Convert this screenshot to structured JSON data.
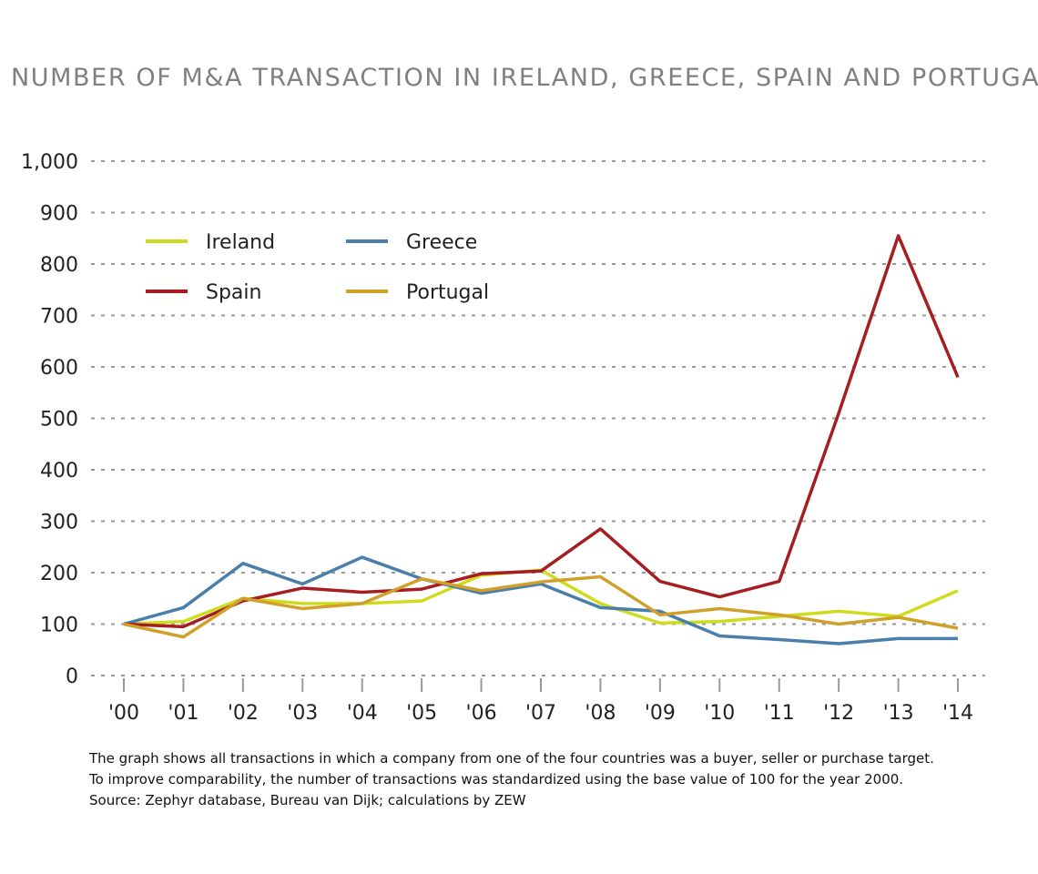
{
  "chart_data": {
    "type": "line",
    "title": "NUMBER OF M&A TRANSACTION IN IRELAND, GREECE, SPAIN AND PORTUGAL",
    "categories": [
      "'00",
      "'01",
      "'02",
      "'03",
      "'04",
      "'05",
      "'06",
      "'07",
      "'08",
      "'09",
      "'10",
      "'11",
      "'12",
      "'13",
      "'14"
    ],
    "ylim": [
      0,
      1000
    ],
    "yticks": [
      0,
      100,
      200,
      300,
      400,
      500,
      600,
      700,
      800,
      900,
      1000
    ],
    "ytick_labels": [
      "0",
      "100",
      "200",
      "300",
      "400",
      "500",
      "600",
      "700",
      "800",
      "900",
      "1,000"
    ],
    "grid": "horizontal dotted",
    "legend": "top-left",
    "series": [
      {
        "name": "Ireland",
        "color": "#cfdc1e",
        "values": [
          100,
          105,
          150,
          140,
          140,
          145,
          195,
          205,
          140,
          102,
          105,
          115,
          125,
          115,
          165
        ]
      },
      {
        "name": "Greece",
        "color": "#4a7fab",
        "values": [
          100,
          132,
          218,
          178,
          230,
          188,
          160,
          178,
          132,
          125,
          77,
          70,
          62,
          72,
          72
        ]
      },
      {
        "name": "Spain",
        "color": "#a41e22",
        "values": [
          100,
          95,
          145,
          170,
          162,
          168,
          198,
          203,
          285,
          183,
          153,
          183,
          510,
          855,
          580
        ]
      },
      {
        "name": "Portugal",
        "color": "#d1a02a",
        "values": [
          100,
          75,
          150,
          130,
          140,
          188,
          165,
          182,
          192,
          118,
          130,
          118,
          100,
          113,
          92
        ]
      }
    ]
  },
  "notes": [
    "The graph shows all transactions in which a company from one of the four countries was a buyer, seller or purchase target.",
    "To improve comparability, the number of transactions was standardized using the base value of 100 for the year 2000.",
    "Source: Zephyr database, Bureau van Dijk; calculations by ZEW"
  ]
}
